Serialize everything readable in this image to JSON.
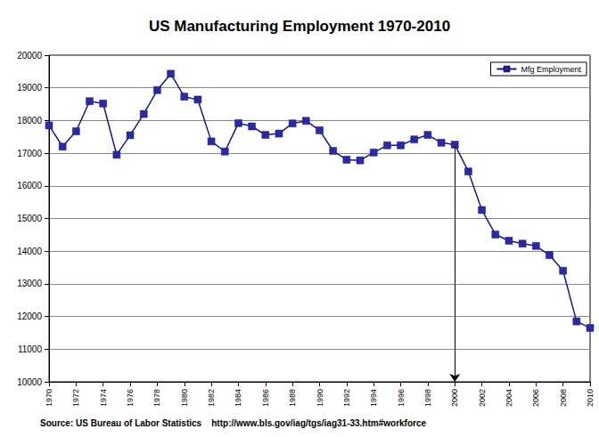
{
  "chart_data": {
    "type": "line",
    "title": "US Manufacturing Employment 1970-2010",
    "source": "Source: US Bureau of Labor Statistics    http://www.bls.gov/iag/tgs/iag31-33.htm#workforce",
    "x": [
      1970,
      1971,
      1972,
      1973,
      1974,
      1975,
      1976,
      1977,
      1978,
      1979,
      1980,
      1981,
      1982,
      1983,
      1984,
      1985,
      1986,
      1987,
      1988,
      1989,
      1990,
      1991,
      1992,
      1993,
      1994,
      1995,
      1996,
      1997,
      1998,
      1999,
      2000,
      2001,
      2002,
      2003,
      2004,
      2005,
      2006,
      2007,
      2008,
      2009,
      2010
    ],
    "series": [
      {
        "name": "Mfg Employment",
        "color": "#2a2aa8",
        "marker": "square",
        "values": [
          17850,
          17200,
          17670,
          18590,
          18520,
          16950,
          17550,
          18200,
          18930,
          19430,
          18730,
          18640,
          17360,
          17050,
          17920,
          17820,
          17560,
          17600,
          17910,
          17990,
          17700,
          17070,
          16800,
          16780,
          17020,
          17240,
          17240,
          17420,
          17560,
          17320,
          17260,
          16440,
          15260,
          14510,
          14320,
          14230,
          14160,
          13880,
          13400,
          11850,
          11650
        ]
      }
    ],
    "xlim": [
      1970,
      2010
    ],
    "xticks": [
      1970,
      1972,
      1974,
      1976,
      1978,
      1980,
      1982,
      1984,
      1986,
      1988,
      1990,
      1992,
      1994,
      1996,
      1998,
      2000,
      2002,
      2004,
      2006,
      2008,
      2010
    ],
    "ylim": [
      10000,
      20000
    ],
    "yticks": [
      10000,
      11000,
      12000,
      13000,
      14000,
      15000,
      16000,
      17000,
      18000,
      19000,
      20000
    ],
    "grid": true,
    "legend": "top-right",
    "annotations": [
      {
        "type": "arrow",
        "x": 2000,
        "y": [
          17200,
          10000
        ]
      }
    ]
  }
}
